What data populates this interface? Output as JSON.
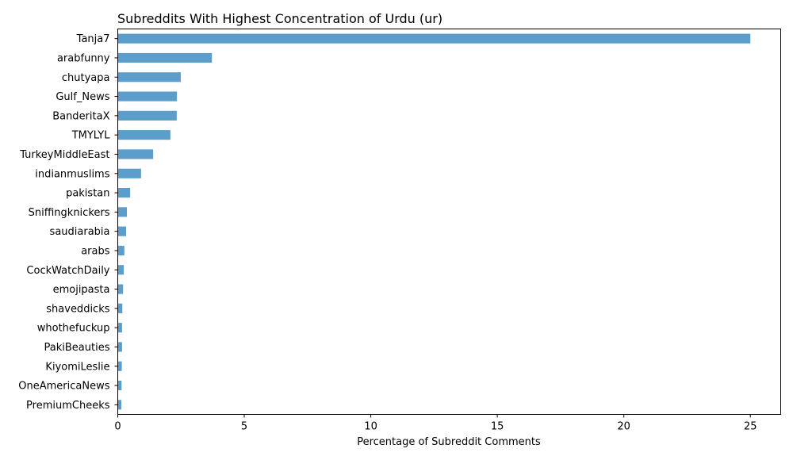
{
  "chart_data": {
    "type": "bar",
    "orientation": "horizontal",
    "title": "Subreddits With Highest Concentration of Urdu (ur)",
    "xlabel": "Percentage of Subreddit Comments",
    "ylabel": "",
    "xlim": [
      0,
      26.2
    ],
    "xticks": [
      0,
      5,
      10,
      15,
      20,
      25
    ],
    "grid": false,
    "bar_color": "#5b9ecb",
    "categories": [
      "Tanja7",
      "arabfunny",
      "chutyapa",
      "Gulf_News",
      "BanderitaX",
      "TMYLYL",
      "TurkeyMiddleEast",
      "indianmuslims",
      "pakistan",
      "Sniffingknickers",
      "saudiarabia",
      "arabs",
      "CockWatchDaily",
      "emojipasta",
      "shaveddicks",
      "whothefuckup",
      "PakiBeauties",
      "KiyomiLeslie",
      "OneAmericaNews",
      "PremiumCheeks"
    ],
    "values": [
      25.0,
      3.72,
      2.49,
      2.34,
      2.33,
      2.08,
      1.4,
      0.92,
      0.49,
      0.36,
      0.33,
      0.26,
      0.24,
      0.21,
      0.18,
      0.17,
      0.17,
      0.16,
      0.15,
      0.14
    ]
  }
}
